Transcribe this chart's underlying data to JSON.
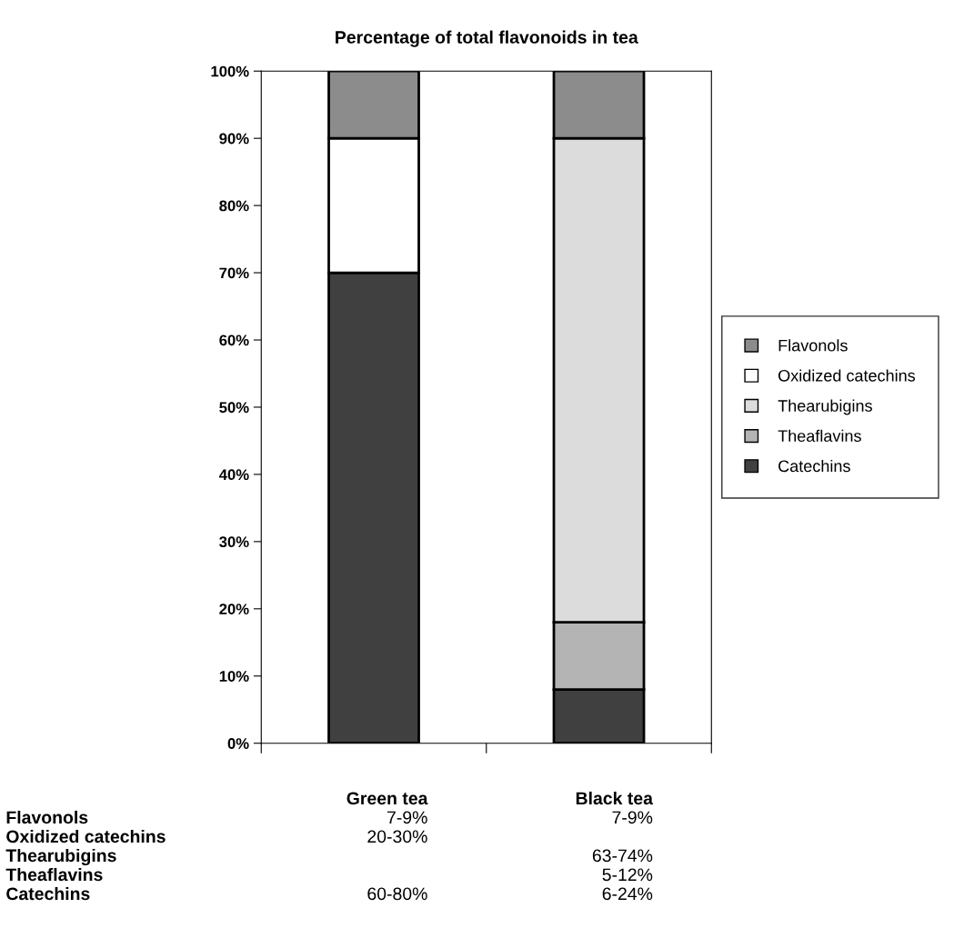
{
  "chart_data": {
    "type": "bar",
    "title": "Percentage of total flavonoids in tea",
    "categories": [
      "Green tea",
      "Black tea"
    ],
    "stacked": true,
    "series": [
      {
        "name": "Catechins",
        "color": "#404040",
        "values": [
          70,
          8
        ]
      },
      {
        "name": "Theaflavins",
        "color": "#b4b4b4",
        "values": [
          0,
          10
        ]
      },
      {
        "name": "Thearubigins",
        "color": "#dcdcdc",
        "values": [
          0,
          72
        ]
      },
      {
        "name": "Oxidized catechins",
        "color": "#ffffff",
        "values": [
          20,
          0
        ]
      },
      {
        "name": "Flavonols",
        "color": "#8c8c8c",
        "values": [
          10,
          10
        ]
      }
    ],
    "annotations": [
      "7-9%",
      "7-9%",
      "20-30%",
      "63-74%",
      "5-12%",
      "60-80%",
      "6-24%"
    ],
    "ylim": [
      0,
      100
    ],
    "yticks": [
      {
        "value": 0,
        "label": "0%"
      },
      {
        "value": 10,
        "label": "10%"
      },
      {
        "value": 20,
        "label": "20%"
      },
      {
        "value": 30,
        "label": "30%"
      },
      {
        "value": 40,
        "label": "40%"
      },
      {
        "value": 50,
        "label": "50%"
      },
      {
        "value": 60,
        "label": "60%"
      },
      {
        "value": 70,
        "label": "70%"
      },
      {
        "value": 80,
        "label": "80%"
      },
      {
        "value": 90,
        "label": "90%"
      },
      {
        "value": 100,
        "label": "100%"
      }
    ],
    "legend": "right",
    "grid": false
  }
}
